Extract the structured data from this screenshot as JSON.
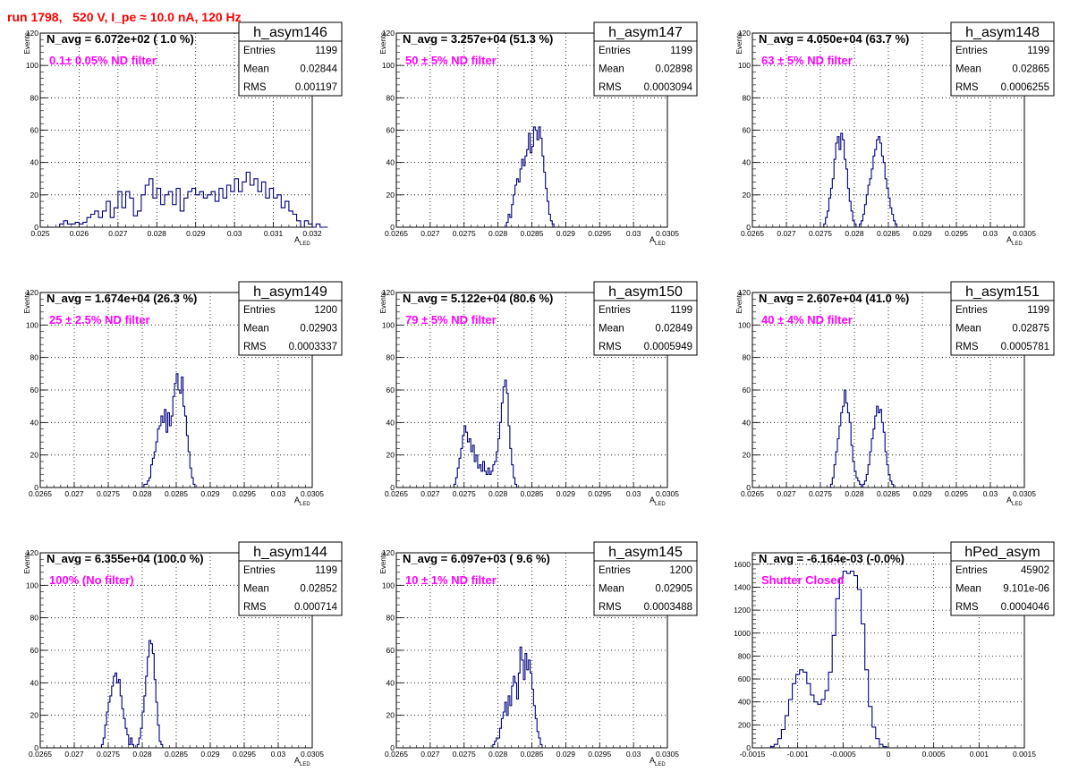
{
  "run_title": "run 1798,   520 V, I_pe ≈ 10.0 nA, 120 Hz",
  "stats_labels": {
    "entries": "Entries",
    "mean": "Mean",
    "rms": "RMS"
  },
  "colors": {
    "histogram_line": "#000080",
    "annotation": "#ff00ff",
    "run_title": "#ff0000",
    "grid": "#000000"
  },
  "chart_data": [
    {
      "type": "histogram",
      "name": "h_asym146",
      "navg": "N_avg = 6.072e+02 ( 1.0 %)",
      "filter": "0.1± 0.05% ND filter",
      "stats": {
        "entries": "1199",
        "mean": "0.02844",
        "rms": "0.001197"
      },
      "xlabel": "A_LED",
      "ylabel": "Events",
      "xlim": [
        0.025,
        0.032
      ],
      "ylim": [
        0,
        120
      ],
      "xticks": [
        "0.025",
        "0.026",
        "0.027",
        "0.028",
        "0.029",
        "0.03",
        "0.031",
        "0.032"
      ],
      "yticks": [
        "20",
        "40",
        "60",
        "80",
        "100",
        "120"
      ],
      "grid": true,
      "bin_start": 0.0255,
      "bin_width": 0.0001,
      "counts": [
        2,
        4,
        2,
        2,
        3,
        2,
        3,
        6,
        8,
        10,
        6,
        10,
        16,
        6,
        12,
        22,
        12,
        22,
        18,
        7,
        10,
        20,
        26,
        30,
        18,
        24,
        14,
        20,
        22,
        14,
        24,
        10,
        18,
        22,
        24,
        20,
        22,
        18,
        20,
        22,
        16,
        24,
        18,
        26,
        22,
        30,
        22,
        28,
        34,
        26,
        30,
        22,
        28,
        18,
        24,
        18,
        20,
        12,
        16,
        10,
        8,
        4,
        0,
        4,
        2,
        0,
        2,
        0,
        0
      ]
    },
    {
      "type": "histogram",
      "name": "h_asym147",
      "navg": "N_avg = 3.257e+04 (51.3 %)",
      "filter": "50 ± 5% ND filter",
      "stats": {
        "entries": "1199",
        "mean": "0.02898",
        "rms": "0.0003094"
      },
      "xlabel": "A_LED",
      "ylabel": "Events",
      "xlim": [
        0.0265,
        0.0305
      ],
      "ylim": [
        0,
        120
      ],
      "xticks": [
        "0.0265",
        "0.027",
        "0.0275",
        "0.028",
        "0.0285",
        "0.029",
        "0.0295",
        "0.03",
        "0.0305"
      ],
      "yticks": [
        "20",
        "40",
        "60",
        "80",
        "100",
        "120"
      ],
      "grid": true,
      "bin_start": 0.0281,
      "bin_width": 2.5e-05,
      "counts": [
        0,
        3,
        8,
        6,
        14,
        20,
        26,
        30,
        28,
        36,
        42,
        38,
        44,
        48,
        58,
        46,
        50,
        62,
        60,
        54,
        62,
        55,
        44,
        34,
        24,
        16,
        8,
        4,
        2,
        0
      ]
    },
    {
      "type": "histogram",
      "name": "h_asym148",
      "navg": "N_avg = 4.050e+04 (63.7 %)",
      "filter": "63 ± 5% ND filter",
      "stats": {
        "entries": "1199",
        "mean": "0.02865",
        "rms": "0.0006255"
      },
      "xlabel": "A_LED",
      "ylabel": "Events",
      "xlim": [
        0.0265,
        0.0305
      ],
      "ylim": [
        0,
        120
      ],
      "xticks": [
        "0.0265",
        "0.027",
        "0.0275",
        "0.028",
        "0.0285",
        "0.029",
        "0.0295",
        "0.03",
        "0.0305"
      ],
      "yticks": [
        "20",
        "40",
        "60",
        "80",
        "100",
        "120"
      ],
      "grid": true,
      "bin_start": 0.02755,
      "bin_width": 2.5e-05,
      "counts": [
        2,
        6,
        10,
        18,
        24,
        30,
        42,
        52,
        56,
        48,
        58,
        54,
        42,
        36,
        24,
        16,
        10,
        4,
        2,
        0,
        0,
        2,
        4,
        8,
        14,
        20,
        26,
        30,
        36,
        44,
        48,
        54,
        56,
        52,
        44,
        40,
        30,
        24,
        18,
        12,
        8,
        4,
        2,
        0
      ]
    },
    {
      "type": "histogram",
      "name": "h_asym149",
      "navg": "N_avg = 1.674e+04 (26.3 %)",
      "filter": "25 ± 2.5% ND filter",
      "stats": {
        "entries": "1200",
        "mean": "0.02903",
        "rms": "0.0003337"
      },
      "xlabel": "A_LED",
      "ylabel": "Events",
      "xlim": [
        0.0265,
        0.0305
      ],
      "ylim": [
        0,
        120
      ],
      "xticks": [
        "0.0265",
        "0.027",
        "0.0275",
        "0.028",
        "0.0285",
        "0.029",
        "0.0295",
        "0.03",
        "0.0305"
      ],
      "yticks": [
        "20",
        "40",
        "60",
        "80",
        "100",
        "120"
      ],
      "grid": true,
      "bin_start": 0.028,
      "bin_width": 2.5e-05,
      "counts": [
        0,
        2,
        2,
        4,
        6,
        14,
        18,
        22,
        28,
        36,
        38,
        44,
        40,
        48,
        34,
        46,
        38,
        44,
        56,
        64,
        70,
        60,
        58,
        68,
        50,
        44,
        32,
        22,
        12,
        6,
        2,
        0
      ]
    },
    {
      "type": "histogram",
      "name": "h_asym150",
      "navg": "N_avg = 5.122e+04 (80.6 %)",
      "filter": "79 ± 5% ND filter",
      "stats": {
        "entries": "1199",
        "mean": "0.02849",
        "rms": "0.0005949"
      },
      "xlabel": "A_LED",
      "ylabel": "Events",
      "xlim": [
        0.0265,
        0.0305
      ],
      "ylim": [
        0,
        120
      ],
      "xticks": [
        "0.0265",
        "0.027",
        "0.0275",
        "0.028",
        "0.0285",
        "0.029",
        "0.0295",
        "0.03",
        "0.0305"
      ],
      "yticks": [
        "20",
        "40",
        "60",
        "80",
        "100",
        "120"
      ],
      "grid": true,
      "bin_start": 0.02735,
      "bin_width": 2.5e-05,
      "counts": [
        2,
        6,
        12,
        18,
        24,
        32,
        38,
        34,
        28,
        30,
        22,
        26,
        16,
        20,
        12,
        14,
        10,
        16,
        10,
        8,
        12,
        8,
        10,
        14,
        16,
        22,
        30,
        40,
        52,
        62,
        66,
        58,
        38,
        24,
        14,
        6,
        2,
        0
      ]
    },
    {
      "type": "histogram",
      "name": "h_asym151",
      "navg": "N_avg = 2.607e+04 (41.0 %)",
      "filter": "40 ± 4% ND filter",
      "stats": {
        "entries": "1199",
        "mean": "0.02875",
        "rms": "0.0005781"
      },
      "xlabel": "A_LED",
      "ylabel": "Events",
      "xlim": [
        0.0265,
        0.0305
      ],
      "ylim": [
        0,
        120
      ],
      "xticks": [
        "0.0265",
        "0.027",
        "0.0275",
        "0.028",
        "0.0285",
        "0.029",
        "0.0295",
        "0.03",
        "0.0305"
      ],
      "yticks": [
        "20",
        "40",
        "60",
        "80",
        "100",
        "120"
      ],
      "grid": true,
      "bin_start": 0.02765,
      "bin_width": 2.5e-05,
      "counts": [
        2,
        6,
        14,
        22,
        30,
        38,
        46,
        50,
        60,
        52,
        46,
        40,
        26,
        16,
        10,
        6,
        4,
        2,
        0,
        2,
        4,
        8,
        14,
        22,
        30,
        36,
        44,
        50,
        46,
        48,
        40,
        34,
        22,
        14,
        8,
        4,
        2,
        0
      ]
    },
    {
      "type": "histogram",
      "name": "h_asym144",
      "navg": "N_avg = 6.355e+04 (100.0 %)",
      "filter": "100% (No filter)",
      "stats": {
        "entries": "1199",
        "mean": "0.02852",
        "rms": "0.000714"
      },
      "xlabel": "A_LED",
      "ylabel": "Events",
      "xlim": [
        0.0265,
        0.0305
      ],
      "ylim": [
        0,
        120
      ],
      "xticks": [
        "0.0265",
        "0.027",
        "0.0275",
        "0.028",
        "0.0285",
        "0.029",
        "0.0295",
        "0.03",
        "0.0305"
      ],
      "yticks": [
        "20",
        "40",
        "60",
        "80",
        "100",
        "120"
      ],
      "grid": true,
      "bin_start": 0.0274,
      "bin_width": 2.5e-05,
      "counts": [
        2,
        6,
        14,
        22,
        28,
        32,
        38,
        44,
        46,
        40,
        42,
        32,
        24,
        18,
        12,
        8,
        2,
        6,
        2,
        0,
        0,
        2,
        6,
        12,
        22,
        32,
        44,
        56,
        66,
        64,
        58,
        42,
        28,
        14,
        4,
        2,
        0
      ]
    },
    {
      "type": "histogram",
      "name": "h_asym145",
      "navg": "N_avg = 6.097e+03 ( 9.6 %)",
      "filter": "10 ± 1% ND filter",
      "stats": {
        "entries": "1200",
        "mean": "0.02905",
        "rms": "0.0003488"
      },
      "xlabel": "A_LED",
      "ylabel": "Events",
      "xlim": [
        0.0265,
        0.0305
      ],
      "ylim": [
        0,
        120
      ],
      "xticks": [
        "0.0265",
        "0.027",
        "0.0275",
        "0.028",
        "0.0285",
        "0.029",
        "0.0295",
        "0.03",
        "0.0305"
      ],
      "yticks": [
        "20",
        "40",
        "60",
        "80",
        "100",
        "120"
      ],
      "grid": true,
      "bin_start": 0.0279,
      "bin_width": 2.5e-05,
      "counts": [
        0,
        2,
        4,
        6,
        6,
        12,
        18,
        22,
        28,
        20,
        32,
        26,
        38,
        44,
        40,
        30,
        46,
        62,
        54,
        42,
        58,
        48,
        54,
        46,
        36,
        26,
        18,
        10,
        6,
        2,
        0
      ]
    },
    {
      "type": "histogram",
      "name": "hPed_asym",
      "navg": "N_avg = -6.164e-03 (-0.0%)",
      "filter": "Shutter Closed",
      "stats": {
        "entries": "45902",
        "mean": "9.101e-06",
        "rms": "0.0004046"
      },
      "xlabel": "",
      "ylabel": "",
      "xlim": [
        -0.0015,
        0.0015
      ],
      "ylim": [
        0,
        1700
      ],
      "xticks": [
        "-0.0015",
        "-0.001",
        "-0.0005",
        "0",
        "0.0005",
        "0.001",
        "0.0015"
      ],
      "yticks": [
        "200",
        "400",
        "600",
        "800",
        "1000",
        "1200",
        "1400",
        "1600"
      ],
      "grid": true,
      "bin_start": -0.0013,
      "bin_width": 4e-05,
      "counts": [
        10,
        30,
        80,
        160,
        280,
        420,
        560,
        640,
        680,
        660,
        560,
        460,
        400,
        380,
        420,
        500,
        660,
        980,
        1300,
        1480,
        1540,
        1520,
        1540,
        1500,
        1380,
        1080,
        680,
        360,
        180,
        80,
        30,
        10,
        0
      ]
    }
  ]
}
